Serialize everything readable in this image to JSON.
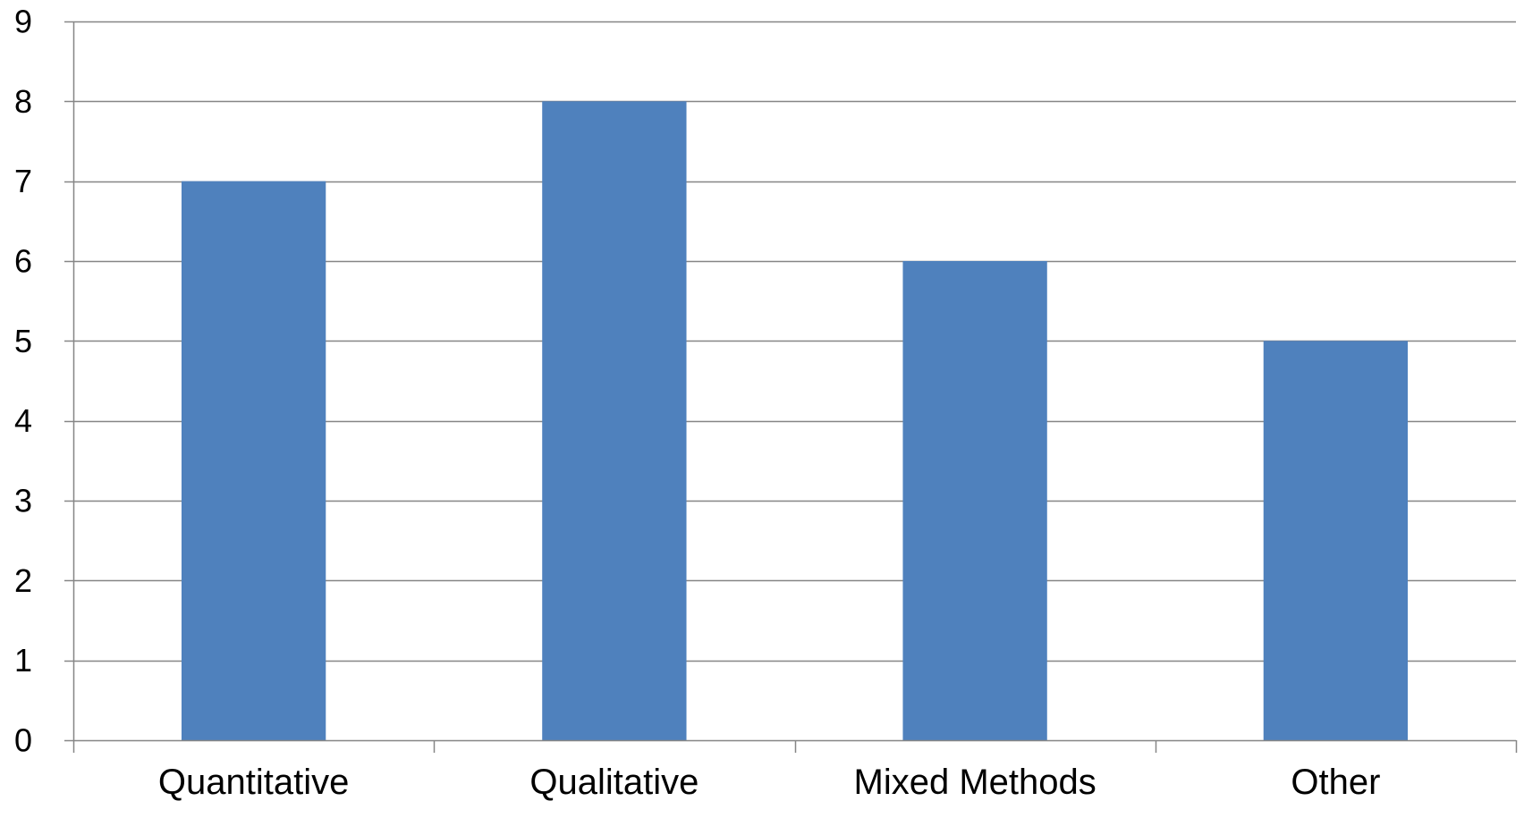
{
  "chart_data": {
    "type": "bar",
    "title": "",
    "xlabel": "",
    "ylabel": "",
    "categories": [
      "Quantitative",
      "Qualitative",
      "Mixed Methods",
      "Other"
    ],
    "values": [
      7,
      8,
      6,
      5
    ],
    "ylim": [
      0,
      9
    ],
    "yticks": [
      0,
      1,
      2,
      3,
      4,
      5,
      6,
      7,
      8,
      9
    ],
    "grid": "horizontal",
    "legend": "none",
    "colors": {
      "bar": "#4F81BD",
      "grid": "#868686",
      "axis": "#868686",
      "text": "#000000"
    }
  }
}
